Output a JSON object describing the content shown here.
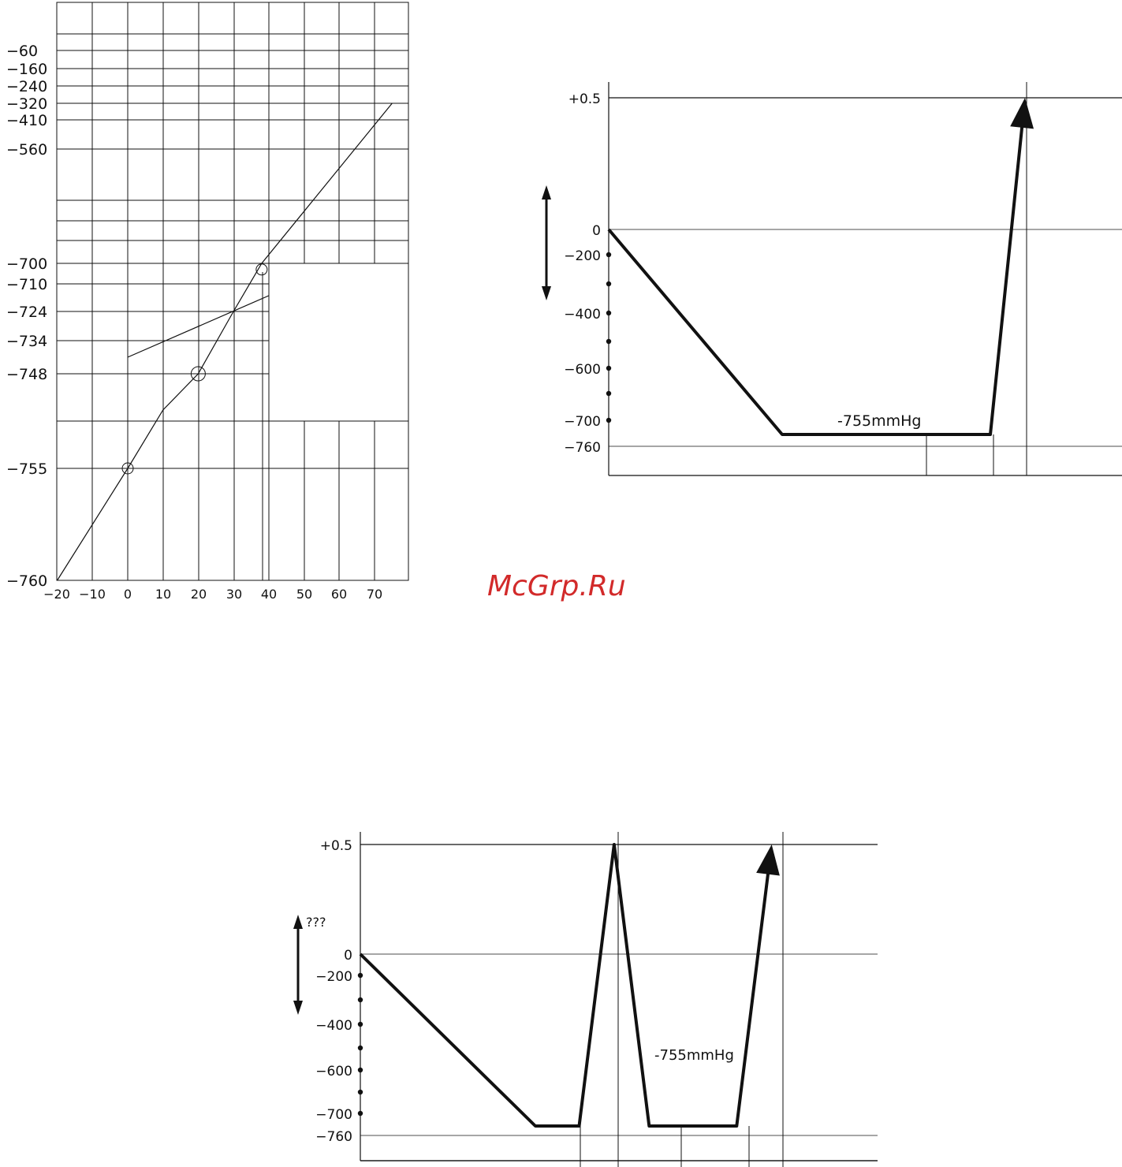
{
  "watermark": "McGrp.Ru",
  "chart_data": [
    {
      "type": "line",
      "x_tick_labels": [
        "-20",
        "-10",
        "0",
        "10",
        "20",
        "30",
        "40",
        "50",
        "60",
        "70"
      ],
      "y_tick_labels": [
        "-60",
        "-160",
        "-240",
        "-320",
        "-410",
        "-560",
        "-700",
        "-710",
        "-724",
        "-734",
        "-748",
        "-755",
        "-760"
      ],
      "grid": true,
      "series": [
        {
          "points": [
            [
              -20,
              -760
            ],
            [
              0,
              -755
            ],
            [
              10,
              -751
            ],
            [
              20,
              -748
            ],
            [
              30,
              -724
            ],
            [
              38,
              -700
            ],
            [
              75,
              -320
            ]
          ]
        },
        {
          "points": [
            [
              0,
              -741
            ],
            [
              40,
              -716
            ]
          ]
        }
      ],
      "markers": [
        {
          "x": 0,
          "y": -755
        },
        {
          "x": 20,
          "y": -748
        },
        {
          "x": 38,
          "y": -703
        }
      ]
    },
    {
      "type": "line",
      "y_tick_labels": [
        "+0.5",
        "0",
        "-200",
        "-400",
        "-600",
        "-700",
        "-760"
      ],
      "annotation": "-755mmHg",
      "series": [
        {
          "points": [
            [
              0,
              0
            ],
            [
              1,
              -755
            ],
            [
              2.2,
              -755
            ],
            [
              2.4,
              0.5
            ]
          ]
        }
      ],
      "arrow_end": true
    },
    {
      "type": "line",
      "y_tick_labels": [
        "+0.5",
        "0",
        "-200",
        "-400",
        "-600",
        "-700",
        "-760"
      ],
      "arrow_label": "???",
      "annotation": "-755mmHg",
      "series": [
        {
          "points": [
            [
              0,
              0
            ],
            [
              1,
              -755
            ],
            [
              1.25,
              -755
            ],
            [
              1.45,
              0.5
            ],
            [
              1.65,
              -755
            ],
            [
              2.15,
              -755
            ],
            [
              2.35,
              0.5
            ]
          ]
        }
      ],
      "arrow_end": true
    }
  ]
}
